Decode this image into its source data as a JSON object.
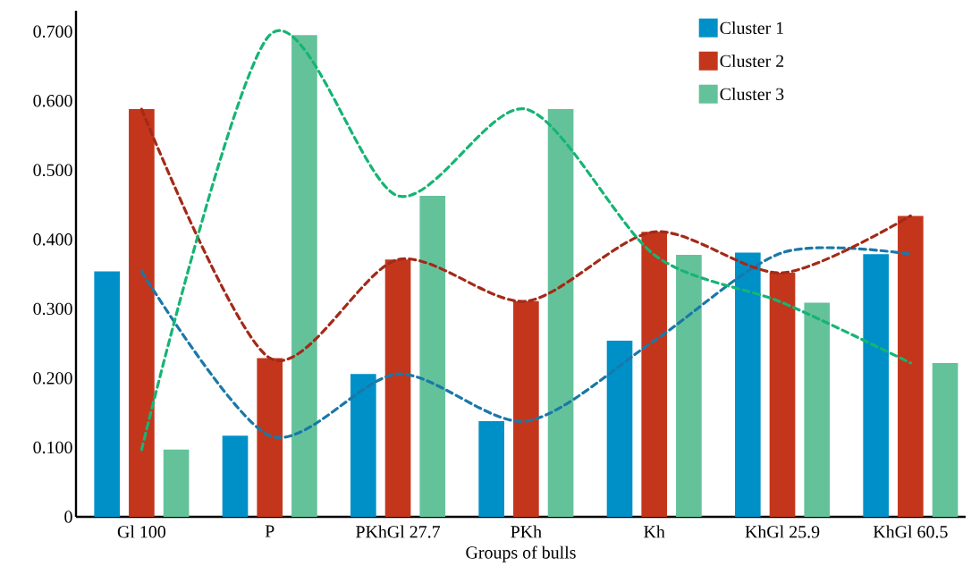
{
  "chart_data": {
    "type": "bar",
    "xlabel": "Groups of bulls",
    "categories": [
      "Gl 100",
      "P",
      "PKhGl 27.7",
      "PKh",
      "Kh",
      "KhGl 25.9",
      "KhGl 60.5"
    ],
    "series": [
      {
        "name": "Cluster 1",
        "color": "#0090c8",
        "values": [
          0.354,
          0.117,
          0.206,
          0.138,
          0.254,
          0.381,
          0.379
        ]
      },
      {
        "name": "Cluster 2",
        "color": "#c3361c",
        "values": [
          0.588,
          0.229,
          0.371,
          0.311,
          0.411,
          0.352,
          0.434
        ]
      },
      {
        "name": "Cluster 3",
        "color": "#64c29a",
        "values": [
          0.097,
          0.695,
          0.463,
          0.588,
          0.378,
          0.309,
          0.222
        ]
      },
      {
        "type": "line",
        "line_style": "dashed",
        "color": "#1a78a8",
        "values": [
          0.354,
          0.117,
          0.206,
          0.138,
          0.254,
          0.381,
          0.379
        ]
      },
      {
        "type": "line",
        "line_style": "dashed",
        "color": "#a32a18",
        "values": [
          0.588,
          0.229,
          0.371,
          0.311,
          0.411,
          0.352,
          0.434
        ]
      },
      {
        "type": "line",
        "line_style": "dashed",
        "color": "#16b474",
        "values": [
          0.097,
          0.695,
          0.463,
          0.588,
          0.378,
          0.309,
          0.222
        ]
      }
    ],
    "ylim": [
      0,
      0.73
    ],
    "yticks": [
      0,
      {
        "value": 0.1,
        "label": "0.100"
      },
      {
        "value": 0.2,
        "label": "0.200"
      },
      {
        "value": 0.3,
        "label": "0.300"
      },
      {
        "value": 0.4,
        "label": "0.400"
      },
      {
        "value": 0.5,
        "label": "0.500"
      },
      {
        "value": 0.6,
        "label": "0.600"
      },
      {
        "value": 0.7,
        "label": "0.700"
      }
    ],
    "legend": "top right"
  }
}
